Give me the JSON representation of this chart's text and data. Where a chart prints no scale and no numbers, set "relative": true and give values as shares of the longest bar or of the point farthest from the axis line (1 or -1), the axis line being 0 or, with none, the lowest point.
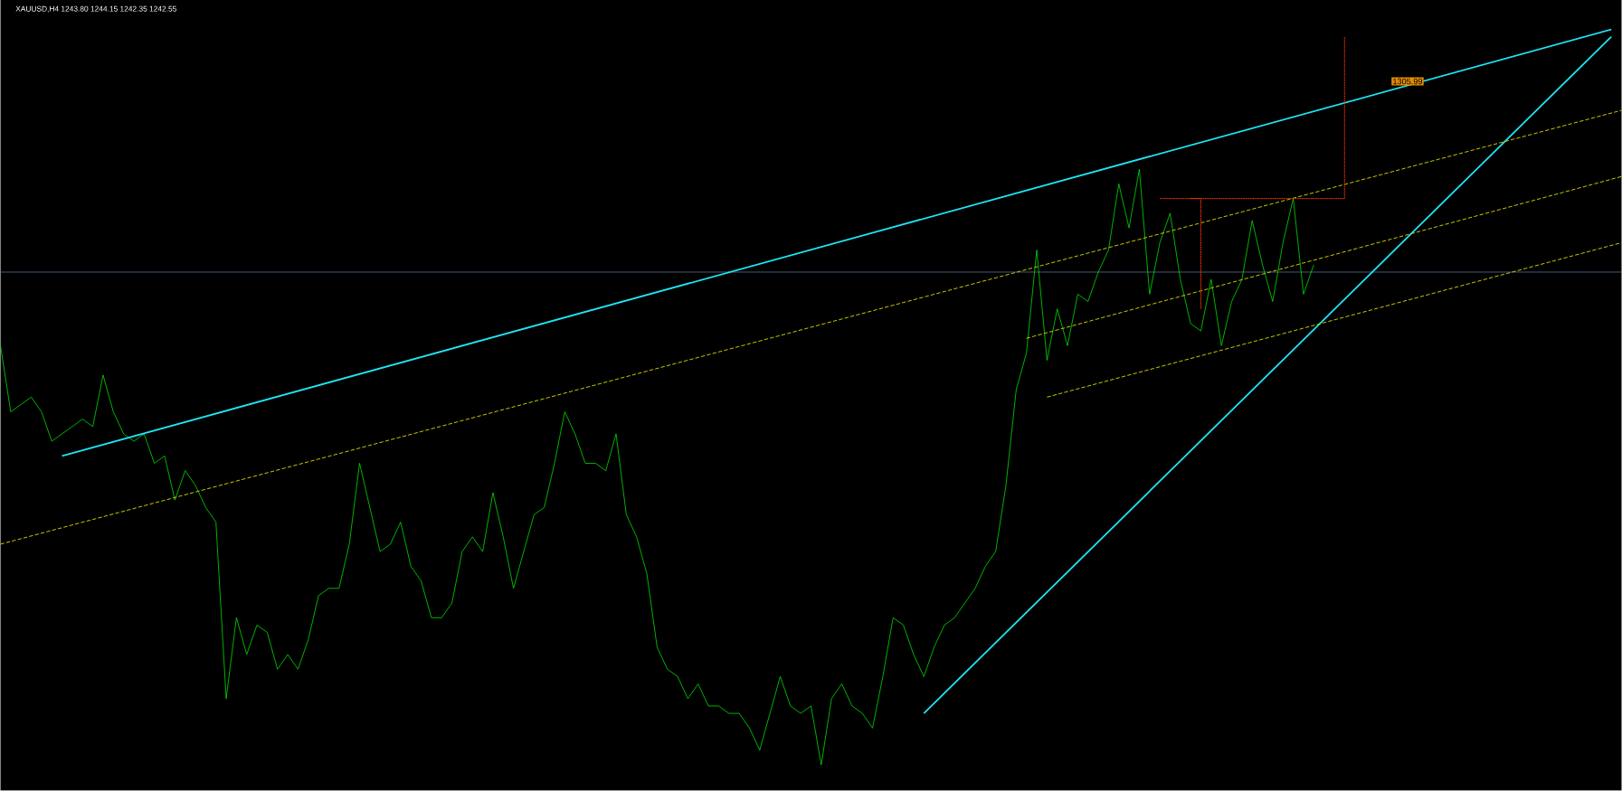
{
  "chart_data": {
    "type": "line",
    "relative": true,
    "title": "XAUUSD,H4  1243.80 1244.15 1242.35 1242.55",
    "categories": [
      null,
      null,
      null,
      null,
      null,
      null,
      null,
      null,
      null,
      null,
      null,
      null,
      null,
      null,
      null,
      null,
      null,
      null,
      null,
      null,
      null,
      null,
      null,
      null,
      null,
      null,
      null,
      null,
      null,
      null,
      null,
      null,
      null,
      null,
      null,
      null,
      null,
      null,
      null,
      null,
      null,
      null,
      null,
      null,
      null,
      null,
      null,
      null,
      null,
      null,
      null,
      null,
      null,
      null,
      null,
      null,
      null,
      null,
      null,
      null,
      null,
      null,
      null,
      null,
      null,
      null,
      null,
      null,
      null,
      null,
      null,
      null,
      null,
      null,
      null,
      null,
      null,
      null,
      null,
      null,
      null,
      null,
      null,
      null,
      null,
      null,
      null,
      null,
      null,
      null,
      null,
      null,
      null,
      null,
      null,
      null,
      null,
      null,
      null,
      null,
      null,
      null,
      null,
      null,
      null,
      null,
      null,
      null,
      null,
      null,
      null,
      null,
      null,
      null,
      null,
      null,
      null,
      null,
      null,
      null,
      null,
      null,
      null,
      null,
      null,
      null,
      null,
      null,
      null,
      null,
      null,
      null,
      null,
      null,
      null,
      null,
      null,
      null,
      null,
      null,
      null,
      null,
      null,
      null,
      null,
      null,
      null,
      null,
      null,
      null,
      null,
      null,
      null,
      null,
      null,
      null,
      null,
      null,
      null
    ],
    "series": [
      {
        "color": "#00ff00",
        "values": [
          0.57,
          0.48,
          0.49,
          0.5,
          0.48,
          0.44,
          0.45,
          0.46,
          0.47,
          0.46,
          0.53,
          0.48,
          0.45,
          0.44,
          0.45,
          0.41,
          0.42,
          0.36,
          0.4,
          0.38,
          0.35,
          0.33,
          0.09,
          0.2,
          0.15,
          0.19,
          0.18,
          0.13,
          0.15,
          0.13,
          0.17,
          0.23,
          0.24,
          0.24,
          0.3,
          0.41,
          0.35,
          0.29,
          0.3,
          0.33,
          0.27,
          0.25,
          0.2,
          0.2,
          0.22,
          0.29,
          0.31,
          0.29,
          0.37,
          0.31,
          0.24,
          0.29,
          0.34,
          0.35,
          0.41,
          0.48,
          0.45,
          0.41,
          0.41,
          0.4,
          0.45,
          0.34,
          0.31,
          0.26,
          0.16,
          0.13,
          0.12,
          0.09,
          0.11,
          0.08,
          0.08,
          0.07,
          0.07,
          0.05,
          0.02,
          0.07,
          0.12,
          0.08,
          0.07,
          0.08,
          0.0,
          0.09,
          0.11,
          0.08,
          0.07,
          0.05,
          0.12,
          0.2,
          0.19,
          0.15,
          0.12,
          0.16,
          0.19,
          0.2,
          0.22,
          0.24,
          0.27,
          0.29,
          0.38,
          0.51,
          0.56,
          0.7,
          0.55,
          0.62,
          0.57,
          0.64,
          0.63,
          0.67,
          0.7,
          0.79,
          0.73,
          0.81,
          0.64,
          0.71,
          0.75,
          0.66,
          0.6,
          0.59,
          0.66,
          0.57,
          0.63,
          0.66,
          0.74,
          0.68,
          0.63,
          0.71,
          0.77,
          0.64,
          0.68,
          null,
          null,
          null,
          null,
          null,
          null,
          null,
          null,
          null,
          null,
          null,
          null,
          null,
          null,
          null,
          null,
          null,
          null,
          null,
          null,
          null,
          null,
          null,
          null,
          null,
          null,
          null,
          null,
          null,
          null
        ]
      },
      {
        "type": "line",
        "color": "#1ee6f5",
        "values": [
          null,
          null,
          null,
          null,
          null,
          null,
          0.42,
          null,
          null,
          null,
          null,
          null,
          null,
          null,
          null,
          null,
          null,
          null,
          null,
          null,
          null,
          null,
          null,
          null,
          null,
          null,
          null,
          null,
          null,
          null,
          null,
          null,
          null,
          null,
          null,
          null,
          null,
          null,
          null,
          null,
          null,
          null,
          null,
          null,
          null,
          null,
          null,
          null,
          null,
          null,
          null,
          null,
          null,
          null,
          null,
          null,
          null,
          null,
          null,
          null,
          null,
          null,
          null,
          null,
          null,
          null,
          null,
          null,
          null,
          null,
          null,
          null,
          null,
          null,
          null,
          null,
          null,
          null,
          null,
          null,
          null,
          null,
          null,
          null,
          null,
          null,
          null,
          null,
          null,
          null,
          null,
          null,
          null,
          null,
          null,
          null,
          null,
          null,
          null,
          null,
          null,
          null,
          null,
          null,
          null,
          null,
          null,
          null,
          null,
          null,
          null,
          null,
          null,
          null,
          null,
          null,
          null,
          null,
          null,
          null,
          null,
          null,
          null,
          null,
          null,
          null,
          null,
          null,
          null,
          null,
          null,
          null,
          null,
          null,
          null,
          null,
          null,
          null,
          null,
          null,
          null,
          null,
          null,
          null,
          null,
          null,
          null,
          null,
          null,
          null,
          null,
          null,
          null,
          null,
          null,
          null,
          null,
          1.0,
          null
        ]
      },
      {
        "type": "line",
        "color": "#1ee6f5",
        "values": [
          null,
          null,
          null,
          null,
          null,
          null,
          null,
          null,
          null,
          null,
          null,
          null,
          null,
          null,
          null,
          null,
          null,
          null,
          null,
          null,
          null,
          null,
          null,
          null,
          null,
          null,
          null,
          null,
          null,
          null,
          null,
          null,
          null,
          null,
          null,
          null,
          null,
          null,
          null,
          null,
          null,
          null,
          null,
          null,
          null,
          null,
          null,
          null,
          null,
          null,
          null,
          null,
          null,
          null,
          null,
          null,
          null,
          null,
          null,
          null,
          null,
          null,
          null,
          null,
          null,
          null,
          null,
          null,
          null,
          null,
          null,
          null,
          null,
          null,
          null,
          null,
          null,
          null,
          null,
          null,
          null,
          null,
          null,
          null,
          null,
          null,
          null,
          null,
          null,
          null,
          0.07,
          null,
          null,
          null,
          null,
          null,
          null,
          null,
          null,
          null,
          null,
          null,
          null,
          null,
          null,
          null,
          null,
          null,
          null,
          null,
          null,
          null,
          null,
          null,
          null,
          null,
          null,
          null,
          null,
          null,
          null,
          null,
          null,
          null,
          null,
          null,
          null,
          null,
          null,
          null,
          null,
          null,
          null,
          null,
          null,
          null,
          null,
          null,
          null,
          null,
          null,
          null,
          null,
          null,
          null,
          null,
          null,
          null,
          null,
          null,
          null,
          null,
          null,
          null,
          null,
          null,
          null,
          0.99,
          null
        ]
      },
      {
        "type": "line",
        "color": "#c8c800",
        "line_style": "dashed",
        "values": [
          0.3,
          null,
          null,
          null,
          null,
          null,
          null,
          null,
          null,
          null,
          null,
          null,
          null,
          null,
          null,
          null,
          null,
          null,
          null,
          null,
          null,
          null,
          null,
          null,
          null,
          null,
          null,
          null,
          null,
          null,
          null,
          null,
          null,
          null,
          null,
          null,
          null,
          null,
          null,
          null,
          null,
          null,
          null,
          null,
          null,
          null,
          null,
          null,
          null,
          null,
          null,
          null,
          null,
          null,
          null,
          null,
          null,
          null,
          null,
          null,
          null,
          null,
          null,
          null,
          null,
          null,
          null,
          null,
          null,
          null,
          null,
          null,
          null,
          null,
          null,
          null,
          null,
          null,
          null,
          null,
          null,
          null,
          null,
          null,
          null,
          null,
          null,
          null,
          null,
          null,
          null,
          null,
          null,
          null,
          null,
          null,
          null,
          null,
          null,
          null,
          null,
          null,
          null,
          null,
          null,
          null,
          null,
          null,
          null,
          null,
          null,
          null,
          null,
          null,
          null,
          null,
          null,
          null,
          null,
          null,
          null,
          null,
          null,
          null,
          null,
          null,
          null,
          null,
          null,
          null,
          null,
          null,
          null,
          null,
          null,
          null,
          null,
          null,
          null,
          null,
          null,
          null,
          null,
          null,
          null,
          null,
          null,
          null,
          null,
          null,
          null,
          null,
          null,
          null,
          null,
          null,
          null,
          null,
          0.89
        ]
      },
      {
        "type": "line",
        "color": "#c8c800",
        "line_style": "dashed",
        "values": [
          null,
          null,
          null,
          null,
          null,
          null,
          null,
          null,
          null,
          null,
          null,
          null,
          null,
          null,
          null,
          null,
          null,
          null,
          null,
          null,
          null,
          null,
          null,
          null,
          null,
          null,
          null,
          null,
          null,
          null,
          null,
          null,
          null,
          null,
          null,
          null,
          null,
          null,
          null,
          null,
          null,
          null,
          null,
          null,
          null,
          null,
          null,
          null,
          null,
          null,
          null,
          null,
          null,
          null,
          null,
          null,
          null,
          null,
          null,
          null,
          null,
          null,
          null,
          null,
          null,
          null,
          null,
          null,
          null,
          null,
          null,
          null,
          null,
          null,
          null,
          null,
          null,
          null,
          null,
          null,
          null,
          null,
          null,
          null,
          null,
          null,
          null,
          null,
          null,
          null,
          null,
          null,
          null,
          null,
          null,
          null,
          null,
          null,
          null,
          null,
          0.58,
          null,
          null,
          null,
          null,
          null,
          null,
          null,
          null,
          null,
          null,
          null,
          null,
          null,
          null,
          null,
          null,
          null,
          null,
          null,
          null,
          null,
          null,
          null,
          null,
          null,
          null,
          null,
          null,
          null,
          null,
          null,
          null,
          null,
          null,
          null,
          null,
          null,
          null,
          null,
          null,
          null,
          null,
          null,
          null,
          null,
          null,
          null,
          null,
          null,
          null,
          null,
          null,
          null,
          null,
          null,
          null,
          null,
          0.8
        ]
      },
      {
        "type": "line",
        "color": "#c8c800",
        "line_style": "dashed",
        "values": [
          null,
          null,
          null,
          null,
          null,
          null,
          null,
          null,
          null,
          null,
          null,
          null,
          null,
          null,
          null,
          null,
          null,
          null,
          null,
          null,
          null,
          null,
          null,
          null,
          null,
          null,
          null,
          null,
          null,
          null,
          null,
          null,
          null,
          null,
          null,
          null,
          null,
          null,
          null,
          null,
          null,
          null,
          null,
          null,
          null,
          null,
          null,
          null,
          null,
          null,
          null,
          null,
          null,
          null,
          null,
          null,
          null,
          null,
          null,
          null,
          null,
          null,
          null,
          null,
          null,
          null,
          null,
          null,
          null,
          null,
          null,
          null,
          null,
          null,
          null,
          null,
          null,
          null,
          null,
          null,
          null,
          null,
          null,
          null,
          null,
          null,
          null,
          null,
          null,
          null,
          null,
          null,
          null,
          null,
          null,
          null,
          null,
          null,
          null,
          null,
          null,
          null,
          0.5,
          null,
          null,
          null,
          null,
          null,
          null,
          null,
          null,
          null,
          null,
          null,
          null,
          null,
          null,
          null,
          null,
          null,
          null,
          null,
          null,
          null,
          null,
          null,
          null,
          null,
          null,
          null,
          null,
          null,
          null,
          null,
          null,
          null,
          null,
          null,
          null,
          null,
          null,
          null,
          null,
          null,
          null,
          null,
          null,
          null,
          null,
          null,
          null,
          null,
          null,
          null,
          null,
          null,
          null,
          null,
          0.71
        ]
      },
      {
        "type": "step",
        "color": "#ff3300",
        "line_style": "dotted",
        "values": [
          null,
          null,
          null,
          null,
          null,
          null,
          null,
          null,
          null,
          null,
          null,
          null,
          null,
          null,
          null,
          null,
          null,
          null,
          null,
          null,
          null,
          null,
          null,
          null,
          null,
          null,
          null,
          null,
          null,
          null,
          null,
          null,
          null,
          null,
          null,
          null,
          null,
          null,
          null,
          null,
          null,
          null,
          null,
          null,
          null,
          null,
          null,
          null,
          null,
          null,
          null,
          null,
          null,
          null,
          null,
          null,
          null,
          null,
          null,
          null,
          null,
          null,
          null,
          null,
          null,
          null,
          null,
          null,
          null,
          null,
          null,
          null,
          null,
          null,
          null,
          null,
          null,
          null,
          null,
          null,
          null,
          null,
          null,
          null,
          null,
          null,
          null,
          null,
          null,
          null,
          null,
          null,
          null,
          null,
          null,
          null,
          null,
          null,
          null,
          null,
          null,
          null,
          null,
          null,
          null,
          null,
          null,
          null,
          null,
          null,
          null,
          null,
          null,
          0.77,
          null,
          null,
          null,
          null,
          null,
          null,
          null,
          null,
          null,
          null,
          null,
          null,
          null,
          null,
          null,
          null,
          null,
          0.99,
          null,
          null,
          null,
          null,
          null,
          null,
          null,
          null,
          null,
          null,
          null,
          null,
          null,
          null,
          null,
          null,
          null,
          null,
          null,
          null,
          null,
          null,
          null,
          null,
          null,
          null,
          null
        ]
      },
      {
        "type": "step",
        "color": "#ff3300",
        "line_style": "dotted",
        "values": [
          null,
          null,
          null,
          null,
          null,
          null,
          null,
          null,
          null,
          null,
          null,
          null,
          null,
          null,
          null,
          null,
          null,
          null,
          null,
          null,
          null,
          null,
          null,
          null,
          null,
          null,
          null,
          null,
          null,
          null,
          null,
          null,
          null,
          null,
          null,
          null,
          null,
          null,
          null,
          null,
          null,
          null,
          null,
          null,
          null,
          null,
          null,
          null,
          null,
          null,
          null,
          null,
          null,
          null,
          null,
          null,
          null,
          null,
          null,
          null,
          null,
          null,
          null,
          null,
          null,
          null,
          null,
          null,
          null,
          null,
          null,
          null,
          null,
          null,
          null,
          null,
          null,
          null,
          null,
          null,
          null,
          null,
          null,
          null,
          null,
          null,
          null,
          null,
          null,
          null,
          null,
          null,
          null,
          null,
          null,
          null,
          null,
          null,
          null,
          null,
          null,
          null,
          null,
          null,
          null,
          null,
          null,
          null,
          null,
          null,
          null,
          null,
          null,
          null,
          null,
          null,
          0.77,
          0.62,
          null,
          null,
          null,
          null,
          null,
          null,
          null,
          null,
          null,
          null,
          null,
          null,
          null,
          null,
          null,
          null,
          null,
          null,
          null,
          null,
          null,
          null,
          null,
          null,
          null,
          null,
          null,
          null,
          null,
          null,
          null,
          null,
          null,
          null,
          null,
          null,
          null,
          null,
          null,
          null,
          null
        ]
      }
    ],
    "ref_lines": [
      {
        "axis": "y",
        "value": 0.67,
        "color": "#6a9ccc"
      }
    ],
    "annotations": [
      "1305.99"
    ]
  }
}
